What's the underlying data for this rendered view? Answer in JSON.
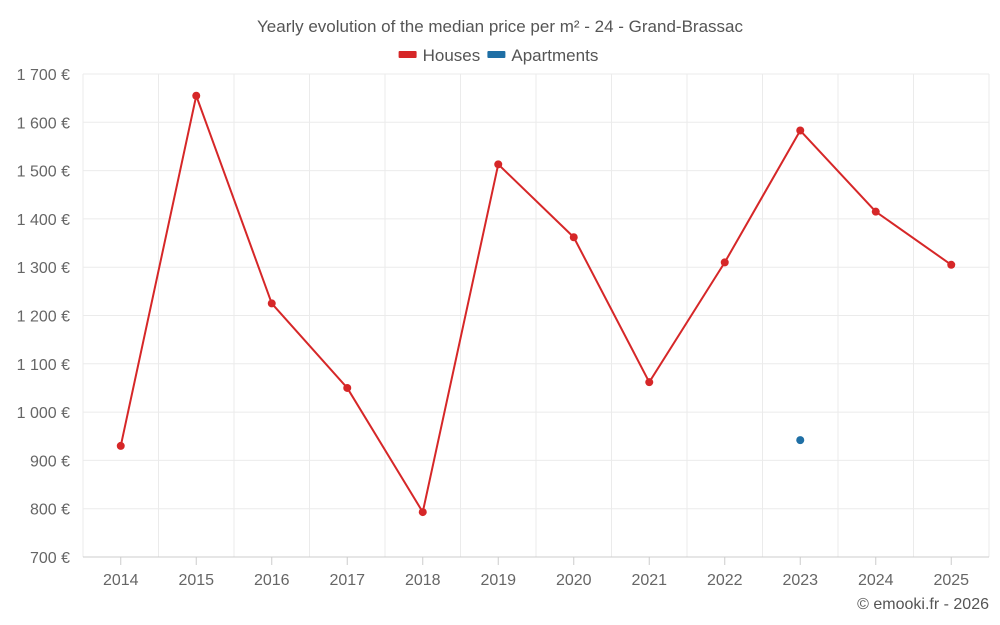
{
  "chart_data": {
    "type": "line",
    "title": "Yearly evolution of the median price per m² - 24 - Grand-Brassac",
    "categories": [
      "2014",
      "2015",
      "2016",
      "2017",
      "2018",
      "2019",
      "2020",
      "2021",
      "2022",
      "2023",
      "2024",
      "2025"
    ],
    "series": [
      {
        "name": "Houses",
        "color": "#d62728",
        "values": [
          930,
          1655,
          1225,
          1050,
          793,
          1513,
          1362,
          1062,
          1310,
          1583,
          1415,
          1305
        ]
      },
      {
        "name": "Apartments",
        "color": "#1f6fa5",
        "values": [
          null,
          null,
          null,
          null,
          null,
          null,
          null,
          null,
          null,
          942,
          null,
          null
        ]
      }
    ],
    "ylim": [
      700,
      1700
    ],
    "yticks": [
      700,
      800,
      900,
      1000,
      1100,
      1200,
      1300,
      1400,
      1500,
      1600,
      1700
    ],
    "ytick_labels": [
      "700 €",
      "800 €",
      "900 €",
      "1 000 €",
      "1 100 €",
      "1 200 €",
      "1 300 €",
      "1 400 €",
      "1 500 €",
      "1 600 €",
      "1 700 €"
    ],
    "grid": true,
    "legend_position": "top-center",
    "credit": "© emooki.fr - 2026"
  }
}
